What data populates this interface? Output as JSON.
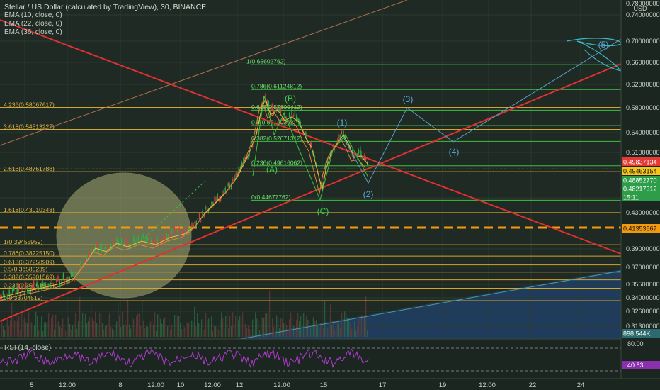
{
  "header": {
    "title": "Stellar / US Dollar (calculated by TradingView), 30, BINANCE",
    "indicators": [
      "EMA (10, close, 0)",
      "EMA (22, close, 0)",
      "EMA (36, close, 0)"
    ],
    "rsi_label": "RSI (14, close)"
  },
  "chart_data": {
    "type": "line",
    "price_axis": {
      "currency": "USD",
      "ticks": [
        "0.78000000",
        "0.74000000",
        "0.70000000",
        "0.66000000",
        "0.62000000",
        "0.58000000",
        "0.54000000",
        "0.51000000",
        "0.45",
        "0.43000000",
        "0.39000000",
        "0.37000000",
        "0.35500000",
        "0.34000000",
        "0.32600000",
        "0.31300000"
      ],
      "tick_values": [
        0.78,
        0.74,
        0.7,
        0.66,
        0.62,
        0.58,
        0.54,
        0.51,
        0.45,
        0.43,
        0.39,
        0.37,
        0.355,
        0.34,
        0.326,
        0.313
      ],
      "badges": [
        {
          "label": "0.49837134",
          "value": 0.49837134,
          "color": "#e53935"
        },
        {
          "label": "0.49463154",
          "value": 0.49463154,
          "color": "#f5c518"
        },
        {
          "label": "0.48852770",
          "value": 0.4885277,
          "color": "#2e9d4a"
        },
        {
          "label": "0.48217312",
          "value": 0.48217312,
          "color": "#2e9d4a"
        },
        {
          "label": "15:11",
          "value": 0.463,
          "color": "#2e9d4a"
        },
        {
          "label": "0.41353667",
          "value": 0.41353667,
          "color": "#f29a0e"
        },
        {
          "label": "898.544K",
          "value": 0.3,
          "color": "#2c6a6e"
        }
      ]
    },
    "time_axis": {
      "ticks": [
        "5",
        "12:00",
        "8",
        "12:00",
        "10",
        "12:00",
        "12",
        "12:00",
        "15",
        "17",
        "19",
        "12:00",
        "22",
        "24"
      ]
    },
    "fib_lower": [
      {
        "label": "1.618(0.43010348)",
        "value": 0.43010348
      },
      {
        "label": "1(0.39455959)",
        "value": 0.39455959
      },
      {
        "label": "0.786(0.38225150)",
        "value": 0.3822515
      },
      {
        "label": "0.618(0.37258909)",
        "value": 0.37258909
      },
      {
        "label": "0.5(0.36580239)",
        "value": 0.36580239
      },
      {
        "label": "0.382(0.35901569)",
        "value": 0.35901569
      },
      {
        "label": "0.236(0.35061515)",
        "value": 0.35061515
      },
      {
        "label": "0(0.33704519)",
        "value": 0.33704519
      },
      {
        "label": "2.618(0.48761788)",
        "value": 0.48761788
      },
      {
        "label": "3.618(0.54513227)",
        "value": 0.54513227
      },
      {
        "label": "4.236(0.58067617)",
        "value": 0.58067617
      }
    ],
    "fib_upper": [
      {
        "label": "1(0.65602762)",
        "value": 0.65602762
      },
      {
        "label": "0.786(0.61124812)",
        "value": 0.61124812
      },
      {
        "label": "0.618(0.57609412)",
        "value": 0.57609412
      },
      {
        "label": "0.5(0.55140362)",
        "value": 0.55140362
      },
      {
        "label": "0.382(0.52671312)",
        "value": 0.52671312
      },
      {
        "label": "0.236(0.49616062)",
        "value": 0.49616062
      },
      {
        "label": "0(0.44677762)",
        "value": 0.44677762
      }
    ],
    "waves": [
      {
        "label": "(A)",
        "value": 0.488,
        "color": "#35d04a"
      },
      {
        "label": "(B)",
        "value": 0.595,
        "color": "#35d04a"
      },
      {
        "label": "(C)",
        "value": 0.435,
        "color": "#35d04a"
      },
      {
        "label": "(1)",
        "value": 0.552,
        "color": "#5ba7d8"
      },
      {
        "label": "(2)",
        "value": 0.468,
        "color": "#5ba7d8"
      },
      {
        "label": "(3)",
        "value": 0.595,
        "color": "#5ba7d8"
      },
      {
        "label": "(4)",
        "value": 0.518,
        "color": "#5ba7d8"
      },
      {
        "label": "(5)",
        "value": 0.692,
        "color": "#5ba7d8"
      }
    ],
    "rsi": {
      "levels": [
        {
          "label": "80.00",
          "value": 80
        },
        {
          "label": "40.53",
          "value": 40.53
        }
      ]
    }
  }
}
